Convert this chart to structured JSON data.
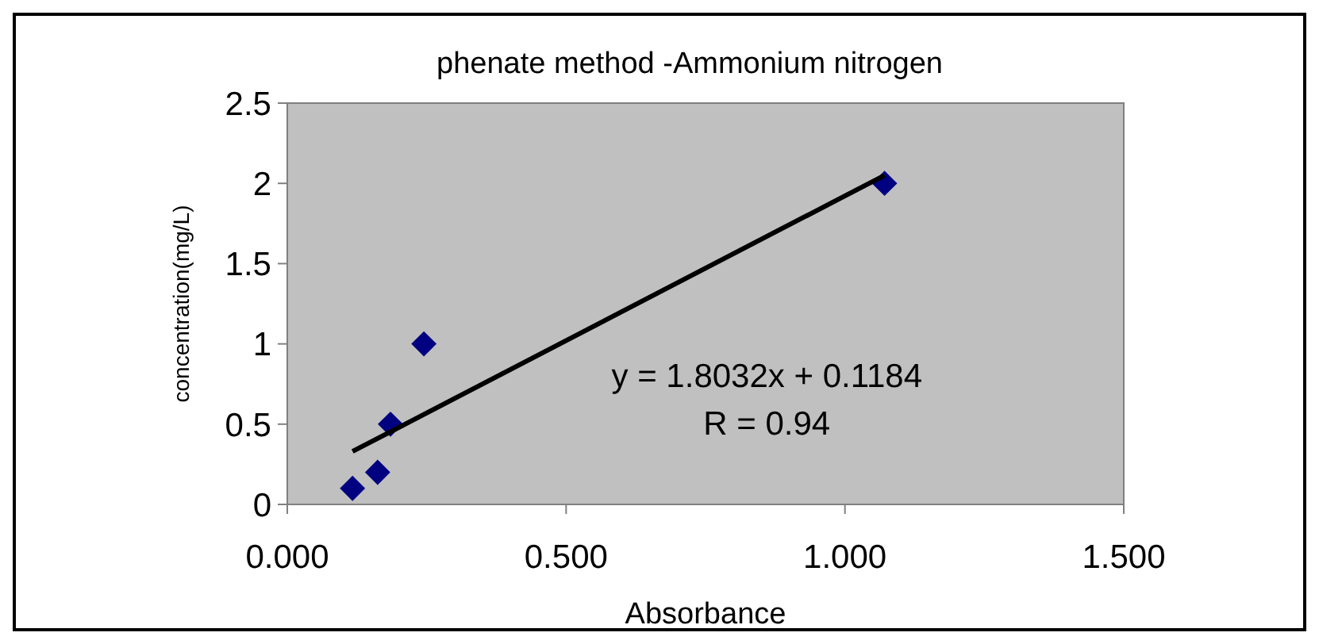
{
  "chart_data": {
    "type": "scatter",
    "title": "phenate method -Ammonium nitrogen",
    "xlabel": "Absorbance",
    "ylabel": "concentration(mg/L)",
    "xlim": [
      0,
      1.5
    ],
    "xticks": [
      {
        "value": 0,
        "label": "0.000"
      },
      {
        "value": 0.5,
        "label": "0.500"
      },
      {
        "value": 1,
        "label": "1.000"
      },
      {
        "value": 1.5,
        "label": "1.500"
      }
    ],
    "ylim": [
      0,
      2.5
    ],
    "yticks": [
      0,
      0.5,
      1,
      1.5,
      2,
      2.5
    ],
    "grid": false,
    "marker": "diamond",
    "series": [
      {
        "color": "#000080",
        "x": [
          0.117,
          0.162,
          0.185,
          0.245,
          1.071
        ],
        "values": [
          0.1,
          0.2,
          0.5,
          1,
          2
        ]
      },
      {
        "type": "line",
        "color": "#000000",
        "x": [
          0.117,
          1.071
        ],
        "values": [
          0.33,
          2.05
        ],
        "marker": "none",
        "line_style": "solid"
      }
    ],
    "annotations": [
      "y = 1.8032x + 0.1184",
      "R = 0.94"
    ]
  }
}
